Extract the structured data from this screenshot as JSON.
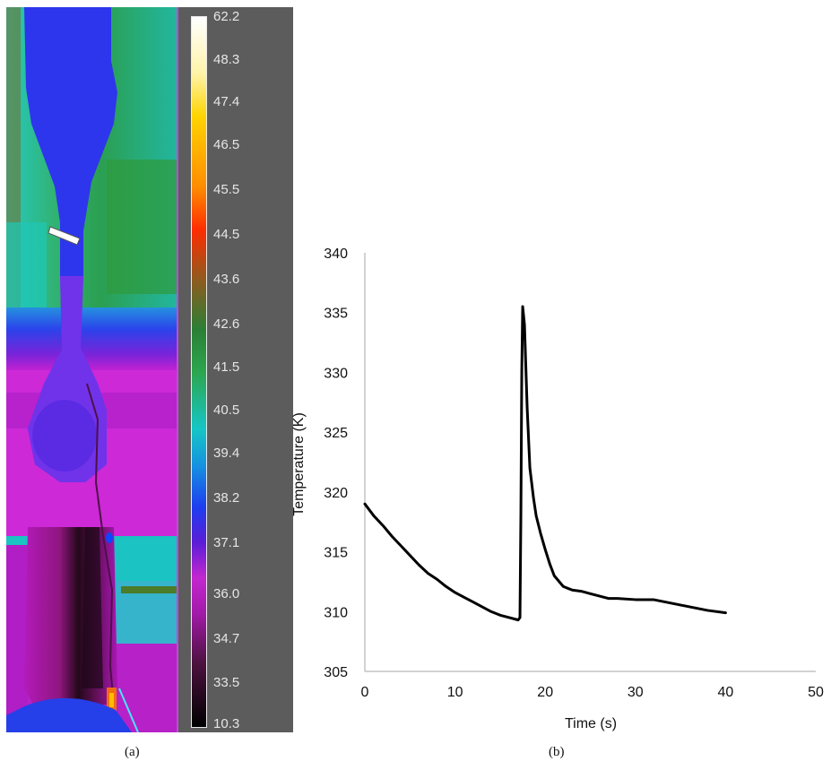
{
  "panels": {
    "a": {
      "caption": "(a)",
      "colorbar_labels": [
        "62.2",
        "48.3",
        "47.4",
        "46.5",
        "45.5",
        "44.5",
        "43.6",
        "42.6",
        "41.5",
        "40.5",
        "39.4",
        "38.2",
        "37.1",
        "36.0",
        "34.7",
        "33.5",
        "10.3"
      ]
    },
    "b": {
      "caption": "(b)"
    }
  },
  "chart_data": {
    "type": "line",
    "title": "",
    "xlabel": "Time (s)",
    "ylabel": "Temperature (K)",
    "xlim": [
      0,
      50
    ],
    "ylim": [
      305,
      340
    ],
    "x_ticks": [
      "0",
      "10",
      "20",
      "30",
      "40",
      "50"
    ],
    "y_ticks": [
      "305",
      "310",
      "315",
      "320",
      "325",
      "330",
      "335",
      "340"
    ],
    "grid": false,
    "legend": "none",
    "series": [
      {
        "x": [
          0,
          1,
          2,
          3,
          4,
          5,
          6,
          7,
          8,
          9,
          10,
          11,
          12,
          13,
          14,
          15,
          16,
          17,
          17.2,
          17.3,
          17.4,
          17.5,
          17.7,
          18,
          18.3,
          18.7,
          19,
          19.5,
          20,
          20.5,
          21,
          22,
          23,
          24,
          25,
          26,
          27,
          28,
          30,
          32,
          34,
          36,
          38,
          40
        ],
        "values": [
          319.0,
          318.0,
          317.2,
          316.3,
          315.5,
          314.7,
          313.9,
          313.2,
          312.7,
          312.1,
          311.6,
          311.2,
          310.8,
          310.4,
          310.0,
          309.7,
          309.5,
          309.3,
          309.5,
          318.0,
          330.0,
          335.5,
          334.0,
          327.0,
          322.0,
          319.5,
          318.0,
          316.5,
          315.2,
          314.0,
          313.0,
          312.1,
          311.8,
          311.7,
          311.5,
          311.3,
          311.1,
          311.1,
          311.0,
          311.0,
          310.7,
          310.4,
          310.1,
          309.9
        ]
      }
    ],
    "colors": {
      "line": "#000000",
      "axis": "#a6a6a6",
      "text": "#111111"
    }
  }
}
